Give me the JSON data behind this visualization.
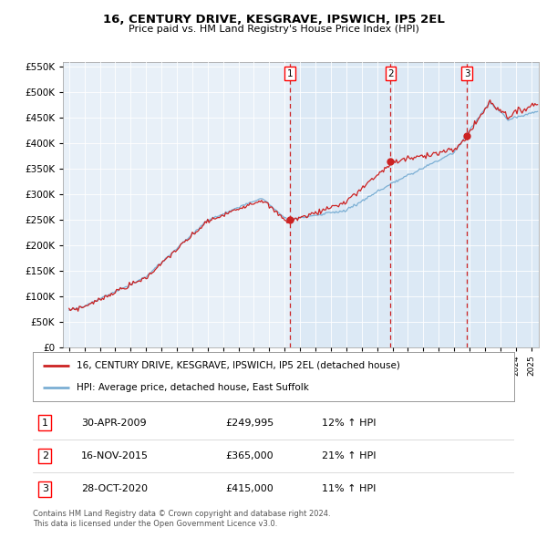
{
  "title": "16, CENTURY DRIVE, KESGRAVE, IPSWICH, IP5 2EL",
  "subtitle": "Price paid vs. HM Land Registry's House Price Index (HPI)",
  "legend_line1": "16, CENTURY DRIVE, KESGRAVE, IPSWICH, IP5 2EL (detached house)",
  "legend_line2": "HPI: Average price, detached house, East Suffolk",
  "footer1": "Contains HM Land Registry data © Crown copyright and database right 2024.",
  "footer2": "This data is licensed under the Open Government Licence v3.0.",
  "transactions": [
    {
      "num": 1,
      "date": "30-APR-2009",
      "price": "£249,995",
      "hpi": "12% ↑ HPI",
      "year": 2009.33
    },
    {
      "num": 2,
      "date": "16-NOV-2015",
      "price": "£365,000",
      "hpi": "21% ↑ HPI",
      "year": 2015.88
    },
    {
      "num": 3,
      "date": "28-OCT-2020",
      "price": "£415,000",
      "hpi": "11% ↑ HPI",
      "year": 2020.83
    }
  ],
  "hpi_color": "#7bafd4",
  "price_color": "#cc2222",
  "dashed_color": "#cc2222",
  "background_chart": "#e8f0f8",
  "shade_color": "#c8dcf0",
  "ylim": [
    0,
    560000
  ],
  "xlim_start": 1994.6,
  "xlim_end": 2025.5,
  "yticks": [
    0,
    50000,
    100000,
    150000,
    200000,
    250000,
    300000,
    350000,
    400000,
    450000,
    500000,
    550000
  ]
}
